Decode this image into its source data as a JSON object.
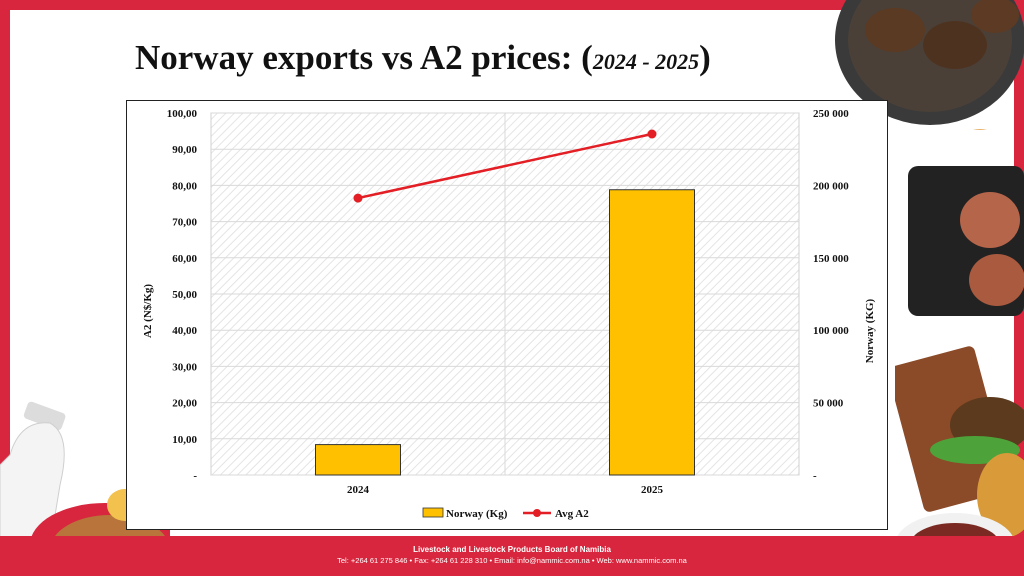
{
  "title": {
    "main": "Norway exports vs A2 prices: (",
    "years": "2024 - 2025",
    "close": ")"
  },
  "footer": {
    "org": "Livestock and Livestock Products Board of Namibia",
    "contact": "Tel: +264 61 275 846 • Fax: +264 61 228 310 • Email: info@nammic.com.na • Web: www.nammic.com.na"
  },
  "colors": {
    "bar": "#ffc000",
    "line": "#e31e24",
    "frame": "#d7263d"
  },
  "chart_data": {
    "type": "bar",
    "categories": [
      "2024",
      "2025"
    ],
    "series": [
      {
        "name": "Norway (Kg)",
        "type": "bar",
        "axis": "right",
        "values": [
          21000,
          197000
        ]
      },
      {
        "name": "Avg A2",
        "type": "line",
        "axis": "left",
        "values": [
          76.5,
          94.2
        ]
      }
    ],
    "ylabel": "A2 (N$/Kg)",
    "y2label": "Norway (KG)",
    "ylim": [
      0,
      100
    ],
    "y2lim": [
      0,
      250000
    ],
    "yticks": [
      "-",
      "10,00",
      "20,00",
      "30,00",
      "40,00",
      "50,00",
      "60,00",
      "70,00",
      "80,00",
      "90,00",
      "100,00"
    ],
    "y2ticks": [
      "-",
      "50 000",
      "100 000",
      "150 000",
      "200 000",
      "250 000"
    ],
    "legend": "bottom"
  }
}
